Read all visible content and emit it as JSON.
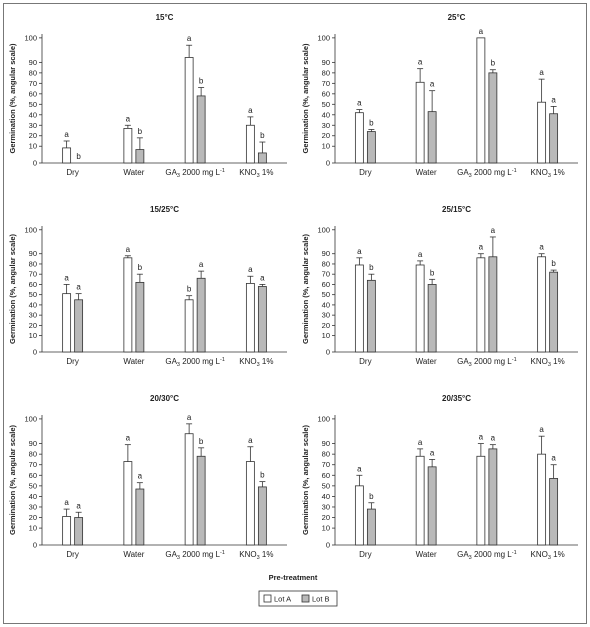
{
  "figure": {
    "xlabel": "Pre-treatment",
    "ylabel": "Germination (%, angular scale)",
    "legend": {
      "placement": "bottom-center",
      "items": [
        "Lot A",
        "Lot B"
      ]
    },
    "colors": {
      "lot_a": "#ffffff",
      "lot_b": "#b9b9b9",
      "stroke": "#333333"
    }
  },
  "chart_data": [
    {
      "type": "bar",
      "title": "15°C",
      "categories": [
        "Dry",
        "Water",
        "GA3 2000 mg L-1",
        "KNO3 1%"
      ],
      "yticks": [
        0,
        10,
        20,
        30,
        40,
        50,
        60,
        70,
        80,
        90,
        100
      ],
      "ylim": [
        0,
        100
      ],
      "series": [
        {
          "name": "Lot A",
          "values": [
            9,
            27,
            92,
            30
          ],
          "errors": [
            6,
            3,
            5,
            8
          ],
          "letters": [
            "a",
            "a",
            "a",
            "a"
          ]
        },
        {
          "name": "Lot B",
          "values": [
            0,
            8,
            58,
            6
          ],
          "errors": [
            0,
            10,
            8,
            8
          ],
          "letters": [
            "b",
            "b",
            "b",
            "b"
          ]
        }
      ]
    },
    {
      "type": "bar",
      "title": "25°C",
      "categories": [
        "Dry",
        "Water",
        "GA3 2000 mg L-1",
        "KNO3 1%"
      ],
      "yticks": [
        0,
        10,
        20,
        30,
        40,
        50,
        60,
        70,
        80,
        90,
        100
      ],
      "ylim": [
        0,
        100
      ],
      "series": [
        {
          "name": "Lot A",
          "values": [
            42,
            71,
            100,
            52
          ],
          "errors": [
            3,
            13,
            0,
            22
          ],
          "letters": [
            "a",
            "a",
            "a",
            "a"
          ]
        },
        {
          "name": "Lot B",
          "values": [
            24,
            43,
            80,
            41
          ],
          "errors": [
            2,
            20,
            3,
            7
          ],
          "letters": [
            "b",
            "a",
            "b",
            "a"
          ]
        }
      ]
    },
    {
      "type": "bar",
      "title": "15/25°C",
      "categories": [
        "Dry",
        "Water",
        "GA3 2000 mg L-1",
        "KNO3 1%"
      ],
      "yticks": [
        0,
        10,
        20,
        30,
        40,
        50,
        60,
        70,
        80,
        90,
        100
      ],
      "ylim": [
        0,
        100
      ],
      "series": [
        {
          "name": "Lot A",
          "values": [
            51,
            86,
            45,
            61
          ],
          "errors": [
            9,
            2,
            4,
            7
          ],
          "letters": [
            "a",
            "a",
            "b",
            "a"
          ]
        },
        {
          "name": "Lot B",
          "values": [
            45,
            62,
            66,
            58
          ],
          "errors": [
            6,
            8,
            7,
            2
          ],
          "letters": [
            "a",
            "b",
            "a",
            "a"
          ]
        }
      ]
    },
    {
      "type": "bar",
      "title": "25/15°C",
      "categories": [
        "Dry",
        "Water",
        "GA3 2000 mg L-1",
        "KNO3 1%"
      ],
      "yticks": [
        0,
        10,
        20,
        30,
        40,
        50,
        60,
        70,
        80,
        90,
        100
      ],
      "ylim": [
        0,
        100
      ],
      "series": [
        {
          "name": "Lot A",
          "values": [
            79,
            79,
            86,
            87
          ],
          "errors": [
            7,
            4,
            4,
            3
          ],
          "letters": [
            "a",
            "a",
            "a",
            "a"
          ]
        },
        {
          "name": "Lot B",
          "values": [
            64,
            60,
            87,
            72
          ],
          "errors": [
            6,
            5,
            10,
            2
          ],
          "letters": [
            "b",
            "b",
            "a",
            "b"
          ]
        }
      ]
    },
    {
      "type": "bar",
      "title": "20/30°C",
      "categories": [
        "Dry",
        "Water",
        "GA3 2000 mg L-1",
        "KNO3 1%"
      ],
      "yticks": [
        0,
        10,
        20,
        30,
        40,
        50,
        60,
        70,
        80,
        90,
        100
      ],
      "ylim": [
        0,
        100
      ],
      "series": [
        {
          "name": "Lot A",
          "values": [
            21,
            73,
            94,
            73
          ],
          "errors": [
            7,
            16,
            4,
            14
          ],
          "letters": [
            "a",
            "a",
            "a",
            "a"
          ]
        },
        {
          "name": "Lot B",
          "values": [
            20,
            47,
            78,
            49
          ],
          "errors": [
            5,
            6,
            8,
            5
          ],
          "letters": [
            "a",
            "a",
            "b",
            "b"
          ]
        }
      ]
    },
    {
      "type": "bar",
      "title": "20/35°C",
      "categories": [
        "Dry",
        "Water",
        "GA3 2000 mg L-1",
        "KNO3 1%"
      ],
      "yticks": [
        0,
        10,
        20,
        30,
        40,
        50,
        60,
        70,
        80,
        90,
        100
      ],
      "ylim": [
        0,
        100
      ],
      "series": [
        {
          "name": "Lot A",
          "values": [
            50,
            78,
            78,
            80
          ],
          "errors": [
            10,
            7,
            12,
            13
          ],
          "letters": [
            "a",
            "a",
            "a",
            "a"
          ]
        },
        {
          "name": "Lot B",
          "values": [
            28,
            68,
            85,
            57
          ],
          "errors": [
            6,
            7,
            4,
            13
          ],
          "letters": [
            "b",
            "a",
            "a",
            "a"
          ]
        }
      ]
    }
  ]
}
